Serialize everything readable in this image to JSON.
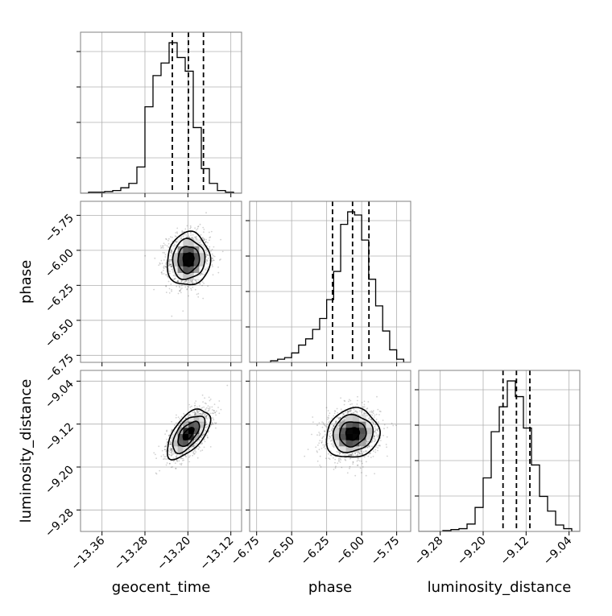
{
  "chart_data": {
    "type": "corner",
    "parameters": [
      {
        "name": "geocent_time",
        "label": "geocent_time",
        "range": [
          -13.4,
          -13.1
        ],
        "ticks": [
          -13.36,
          -13.28,
          -13.2,
          -13.12
        ],
        "tick_labels": [
          "−13.36",
          "−13.28",
          "−13.20",
          "−13.12"
        ],
        "quantiles": [
          -13.229,
          -13.199,
          -13.171
        ]
      },
      {
        "name": "phase",
        "label": "phase",
        "range": [
          -6.8,
          -5.65
        ],
        "ticks": [
          -6.75,
          -6.5,
          -6.25,
          -6.0,
          -5.75
        ],
        "tick_labels": [
          "−6.75",
          "−6.50",
          "−6.25",
          "−6.00",
          "−5.75"
        ],
        "quantiles": [
          -6.208,
          -6.065,
          -5.948
        ]
      },
      {
        "name": "luminosity_distance",
        "label": "luminosity_distance",
        "range": [
          -9.32,
          -9.02
        ],
        "ticks": [
          -9.28,
          -9.2,
          -9.12,
          -9.04
        ],
        "tick_labels": [
          "−9.28",
          "−9.20",
          "−9.12",
          "−9.04"
        ],
        "quantiles": [
          -9.163,
          -9.138,
          -9.113
        ]
      }
    ],
    "histograms": [
      {
        "parameter": "geocent_time",
        "bin_edges": [
          -13.4,
          -13.385,
          -13.37,
          -13.355,
          -13.34,
          -13.325,
          -13.31,
          -13.295,
          -13.28,
          -13.265,
          -13.25,
          -13.235,
          -13.22,
          -13.205,
          -13.19,
          -13.175,
          -13.16,
          -13.145,
          -13.13,
          -13.115,
          -13.1
        ],
        "counts": [
          0,
          2,
          2,
          3,
          5,
          10,
          18,
          48,
          158,
          215,
          238,
          275,
          248,
          223,
          120,
          45,
          18,
          5,
          2,
          0
        ]
      },
      {
        "parameter": "phase",
        "bin_edges": [
          -6.8,
          -6.75,
          -6.7,
          -6.65,
          -6.6,
          -6.55,
          -6.5,
          -6.45,
          -6.4,
          -6.35,
          -6.3,
          -6.25,
          -6.2,
          -6.15,
          -6.1,
          -6.05,
          -6.0,
          -5.95,
          -5.9,
          -5.85,
          -5.8,
          -5.75,
          -5.7,
          -5.65
        ],
        "counts": [
          0,
          0,
          0,
          1,
          2,
          3,
          6,
          11,
          15,
          21,
          28,
          40,
          58,
          88,
          96,
          94,
          78,
          53,
          36,
          20,
          8,
          2,
          0
        ]
      },
      {
        "parameter": "luminosity_distance",
        "bin_edges": [
          -9.32,
          -9.305,
          -9.29,
          -9.275,
          -9.26,
          -9.245,
          -9.23,
          -9.215,
          -9.2,
          -9.185,
          -9.17,
          -9.155,
          -9.14,
          -9.125,
          -9.11,
          -9.095,
          -9.08,
          -9.065,
          -9.05,
          -9.035,
          -9.02
        ],
        "counts": [
          0,
          0,
          0,
          1,
          2,
          3,
          8,
          26,
          58,
          108,
          135,
          163,
          146,
          112,
          72,
          38,
          22,
          7,
          3,
          0
        ]
      }
    ],
    "density_2d": [
      {
        "x": "geocent_time",
        "y": "phase",
        "center": [
          -13.199,
          -6.065
        ],
        "sigma": [
          0.02,
          0.095
        ],
        "correlation": 0.05
      },
      {
        "x": "geocent_time",
        "y": "luminosity_distance",
        "center": [
          -13.199,
          -9.138
        ],
        "sigma": [
          0.02,
          0.023
        ],
        "correlation": 0.6
      },
      {
        "x": "phase",
        "y": "luminosity_distance",
        "center": [
          -6.065,
          -9.138
        ],
        "sigma": [
          0.095,
          0.023
        ],
        "correlation": 0.1
      }
    ],
    "contour_levels_sigma": [
      0.5,
      1.0,
      1.5,
      2.0
    ],
    "grid": true,
    "quantile_line_style": "dashed"
  }
}
